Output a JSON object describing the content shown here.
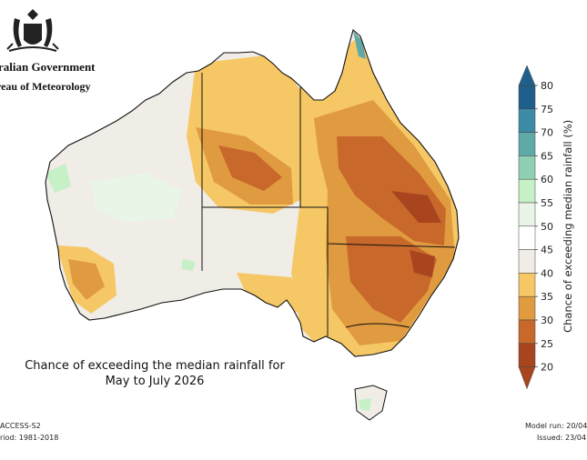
{
  "header": {
    "government": "ralian Government",
    "bureau": "reau of Meteorology"
  },
  "title": {
    "line1": "Chance of exceeding the median rainfall for",
    "line2": "May to July 2026"
  },
  "footer": {
    "model": "ACCESS-S2",
    "period": "riod: 1981-2018",
    "model_run": "Model run: 20/04",
    "issued": "Issued: 23/04"
  },
  "colorbar": {
    "label": "Chance of exceeding median rainfall (%)",
    "ticks": [
      "80",
      "75",
      "70",
      "65",
      "60",
      "55",
      "50",
      "45",
      "40",
      "35",
      "30",
      "25",
      "20"
    ],
    "colors": [
      "#1f5f8b",
      "#3d8ba5",
      "#5fa9a8",
      "#8fd0b4",
      "#c6f0c6",
      "#e9f5e6",
      "#ffffff",
      "#f0ece6",
      "#f6c765",
      "#e09a3f",
      "#c8682b",
      "#a8451f"
    ]
  },
  "map_palette": {
    "neutral": "#f0ece6",
    "wet_weak": "#e9f5e6",
    "wet": "#c6f0c6",
    "p40_35": "#f6c765",
    "p35_30": "#e09a3f",
    "p30_25": "#c8682b",
    "p25_20": "#a8451f",
    "teal": "#5fa9a8"
  }
}
